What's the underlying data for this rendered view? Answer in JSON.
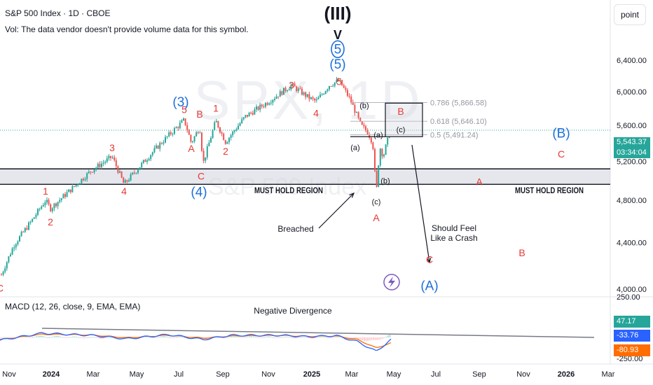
{
  "header": {
    "title": "S&P 500 Index · 1D · CBOE",
    "vol_note": "Vol: The data vendor doesn't provide volume data for this symbol."
  },
  "toolbar": {
    "point_label": "point"
  },
  "watermark": {
    "main": "SPX, 1D",
    "sub": "S&P 500 Index"
  },
  "colors": {
    "up": "#26a69a",
    "down": "#ef5350",
    "wave_red": "#e53935",
    "wave_blue": "#1e6fd9",
    "macd_line": "#2962ff",
    "signal_line": "#ff6d00",
    "price_line": "#26a69a"
  },
  "price_axis": {
    "ticks": [
      "6,400.00",
      "6,000.00",
      "5,600.00",
      "5,200.00",
      "4,800.00",
      "4,400.00",
      "4,000.00"
    ],
    "current_price": "5,543.37",
    "countdown": "03:34:04"
  },
  "macd_axis": {
    "ticks": [
      "250.00",
      "-250.00"
    ],
    "values": {
      "hist": "47.17",
      "macd": "-33.76",
      "signal": "-80.93"
    }
  },
  "time_axis": [
    "Nov",
    "2024",
    "Mar",
    "May",
    "Jul",
    "Sep",
    "Nov",
    "2025",
    "Mar",
    "May",
    "Jul",
    "Sep",
    "Nov",
    "2026",
    "Mar"
  ],
  "macd": {
    "title": "MACD (12, 26, close, 9, EMA, EMA)",
    "annotation": "Negative Divergence"
  },
  "annotations": {
    "must_hold_left": "MUST HOLD REGION",
    "must_hold_right": "MUST HOLD REGION",
    "breached": "Breached",
    "crash": [
      "Should Feel",
      "Like a Crash"
    ],
    "super_cycle": "(III)",
    "super_cycle_v": "V"
  },
  "fib_levels": [
    {
      "label": "0.786 (5,866.58)",
      "price": 5866.58
    },
    {
      "label": "0.618 (5,646.10)",
      "price": 5646.1
    },
    {
      "label": "0.5 (5,491.24)",
      "price": 5491.24
    }
  ],
  "wave_labels": [
    {
      "text": "C",
      "t": 0,
      "price": 3980,
      "color": "red"
    },
    {
      "text": "1",
      "t": 65,
      "price": 4855,
      "color": "red"
    },
    {
      "text": "2",
      "t": 72,
      "price": 4560,
      "color": "red"
    },
    {
      "text": "3",
      "t": 160,
      "price": 5310,
      "color": "red"
    },
    {
      "text": "4",
      "t": 177,
      "price": 4855,
      "color": "red"
    },
    {
      "text": "5",
      "t": 263,
      "price": 5740,
      "color": "red"
    },
    {
      "text": "B",
      "t": 285,
      "price": 5690,
      "color": "red"
    },
    {
      "text": "A",
      "t": 273,
      "price": 5300,
      "color": "red"
    },
    {
      "text": "C",
      "t": 287,
      "price": 5010,
      "color": "red"
    },
    {
      "text": "1",
      "t": 308,
      "price": 5760,
      "color": "red"
    },
    {
      "text": "2",
      "t": 322,
      "price": 5270,
      "color": "red"
    },
    {
      "text": "3",
      "t": 416,
      "price": 6040,
      "color": "red"
    },
    {
      "text": "4",
      "t": 451,
      "price": 5700,
      "color": "red"
    },
    {
      "text": "5",
      "t": 484,
      "price": 6080,
      "color": "red"
    },
    {
      "text": "A",
      "t": 537,
      "price": 4600,
      "color": "red"
    },
    {
      "text": "B",
      "t": 572,
      "price": 5720,
      "color": "red"
    },
    {
      "text": "C",
      "t": 613,
      "price": 4220,
      "color": "red"
    },
    {
      "text": "A",
      "t": 684,
      "price": 4950,
      "color": "red"
    },
    {
      "text": "B",
      "t": 745,
      "price": 4280,
      "color": "red"
    },
    {
      "text": "C",
      "t": 801,
      "price": 5240,
      "color": "red"
    },
    {
      "text": "(a)",
      "t": 507,
      "price": 5320,
      "color": "black"
    },
    {
      "text": "(b)",
      "t": 520,
      "price": 5800,
      "color": "black"
    },
    {
      "text": "(a)",
      "t": 540,
      "price": 5460,
      "color": "black"
    },
    {
      "text": "(c)",
      "t": 572,
      "price": 5520,
      "color": "black"
    },
    {
      "text": "(b)",
      "t": 550,
      "price": 4970,
      "color": "black"
    },
    {
      "text": "(c)",
      "t": 537,
      "price": 4760,
      "color": "black"
    },
    {
      "text": "(3)",
      "t": 258,
      "price": 5820,
      "color": "blue"
    },
    {
      "text": "(4)",
      "t": 284,
      "price": 4840,
      "color": "blue"
    },
    {
      "text": "(5)",
      "t": 482,
      "price": 6290,
      "color": "blue"
    },
    {
      "text": "5",
      "t": 482,
      "price": 6490,
      "color": "blue_circle"
    },
    {
      "text": "(B)",
      "t": 801,
      "price": 5460,
      "color": "blue"
    },
    {
      "text": "(A)",
      "t": 613,
      "price": 3990,
      "color": "blue"
    }
  ],
  "chart_data": {
    "type": "candlestick",
    "title": "S&P 500 Index · 1D · CBOE",
    "ylim": [
      3960,
      6700
    ],
    "x_ticks": [
      "Nov",
      "2024",
      "Mar",
      "May",
      "Jul",
      "Sep",
      "Nov",
      "2025",
      "Mar",
      "May",
      "Jul",
      "Sep",
      "Nov",
      "2026",
      "Mar"
    ],
    "y_ticks": [
      6400,
      6000,
      5600,
      5200,
      4800,
      4400,
      4000
    ],
    "price_path": [
      {
        "t": 2,
        "v": 4120
      },
      {
        "t": 20,
        "v": 4380
      },
      {
        "t": 45,
        "v": 4600
      },
      {
        "t": 65,
        "v": 4800
      },
      {
        "t": 72,
        "v": 4720
      },
      {
        "t": 100,
        "v": 4900
      },
      {
        "t": 130,
        "v": 5100
      },
      {
        "t": 160,
        "v": 5250
      },
      {
        "t": 177,
        "v": 4960
      },
      {
        "t": 200,
        "v": 5150
      },
      {
        "t": 230,
        "v": 5400
      },
      {
        "t": 263,
        "v": 5660
      },
      {
        "t": 273,
        "v": 5400
      },
      {
        "t": 285,
        "v": 5580
      },
      {
        "t": 290,
        "v": 5180
      },
      {
        "t": 308,
        "v": 5650
      },
      {
        "t": 322,
        "v": 5410
      },
      {
        "t": 350,
        "v": 5700
      },
      {
        "t": 380,
        "v": 5860
      },
      {
        "t": 400,
        "v": 5980
      },
      {
        "t": 416,
        "v": 6080
      },
      {
        "t": 440,
        "v": 5930
      },
      {
        "t": 451,
        "v": 5880
      },
      {
        "t": 470,
        "v": 6080
      },
      {
        "t": 484,
        "v": 6140
      },
      {
        "t": 500,
        "v": 5900
      },
      {
        "t": 515,
        "v": 5600
      },
      {
        "t": 525,
        "v": 5520
      },
      {
        "t": 532,
        "v": 5400
      },
      {
        "t": 537,
        "v": 4860
      },
      {
        "t": 542,
        "v": 5360
      },
      {
        "t": 547,
        "v": 5250
      },
      {
        "t": 552,
        "v": 5400
      },
      {
        "t": 558,
        "v": 5543
      }
    ],
    "must_hold_region": [
      4960,
      5120
    ],
    "current_price": 5543.37,
    "macd": {
      "ylim": [
        -300,
        300
      ],
      "macd_line_path": [
        {
          "t": 0,
          "v": -40
        },
        {
          "t": 60,
          "v": 60
        },
        {
          "t": 130,
          "v": 30
        },
        {
          "t": 180,
          "v": -20
        },
        {
          "t": 240,
          "v": 40
        },
        {
          "t": 290,
          "v": -30
        },
        {
          "t": 330,
          "v": 30
        },
        {
          "t": 400,
          "v": 30
        },
        {
          "t": 440,
          "v": 10
        },
        {
          "t": 480,
          "v": 25
        },
        {
          "t": 510,
          "v": -60
        },
        {
          "t": 537,
          "v": -200
        },
        {
          "t": 558,
          "v": -34
        }
      ],
      "signal_line_path": [
        {
          "t": 0,
          "v": -30
        },
        {
          "t": 60,
          "v": 45
        },
        {
          "t": 130,
          "v": 35
        },
        {
          "t": 180,
          "v": -5
        },
        {
          "t": 240,
          "v": 30
        },
        {
          "t": 290,
          "v": -10
        },
        {
          "t": 330,
          "v": 20
        },
        {
          "t": 400,
          "v": 28
        },
        {
          "t": 440,
          "v": 15
        },
        {
          "t": 480,
          "v": 20
        },
        {
          "t": 510,
          "v": -30
        },
        {
          "t": 537,
          "v": -150
        },
        {
          "t": 558,
          "v": -81
        }
      ],
      "divergence_line": [
        {
          "t": 60,
          "v": 70
        },
        {
          "t": 848,
          "v": 0
        }
      ],
      "hist_last": 47.17,
      "macd_last": -33.76,
      "signal_last": -80.93
    }
  }
}
